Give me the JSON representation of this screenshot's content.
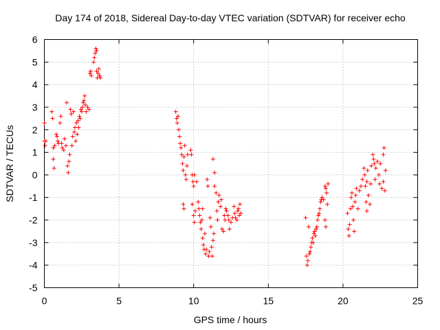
{
  "chart_data": {
    "type": "scatter",
    "title": "Day 174 of 2018, Sidereal Day-to-day VTEC variation (SDTVAR) for receiver echo",
    "xlabel": "GPS time / hours",
    "ylabel": "SDTVAR / TECUs",
    "xlim": [
      0,
      25
    ],
    "ylim": [
      -5,
      6
    ],
    "xticks": [
      "0",
      "5",
      "10",
      "15",
      "20",
      "25"
    ],
    "yticks": [
      "-5",
      "-4",
      "-3",
      "-2",
      "-1",
      "0",
      "1",
      "2",
      "3",
      "4",
      "5",
      "6"
    ],
    "grid": true,
    "marker": "+",
    "color": "#ff0000",
    "series": [
      {
        "name": "SDTVAR",
        "points": [
          [
            0.0,
            2.3
          ],
          [
            0.0,
            1.5
          ],
          [
            0.05,
            1.3
          ],
          [
            0.1,
            1.5
          ],
          [
            0.5,
            2.8
          ],
          [
            0.55,
            2.5
          ],
          [
            0.6,
            1.2
          ],
          [
            0.6,
            0.7
          ],
          [
            0.65,
            0.3
          ],
          [
            0.7,
            1.3
          ],
          [
            0.8,
            1.8
          ],
          [
            0.85,
            1.7
          ],
          [
            0.9,
            1.5
          ],
          [
            0.95,
            1.4
          ],
          [
            1.05,
            2.3
          ],
          [
            1.1,
            2.6
          ],
          [
            1.15,
            1.4
          ],
          [
            1.2,
            1.2
          ],
          [
            1.3,
            1.1
          ],
          [
            1.35,
            1.6
          ],
          [
            1.45,
            1.3
          ],
          [
            1.5,
            3.2
          ],
          [
            1.55,
            0.4
          ],
          [
            1.6,
            0.1
          ],
          [
            1.65,
            0.6
          ],
          [
            1.7,
            0.9
          ],
          [
            1.75,
            2.9
          ],
          [
            1.8,
            2.7
          ],
          [
            1.85,
            1.3
          ],
          [
            1.9,
            1.7
          ],
          [
            1.95,
            2.8
          ],
          [
            2.0,
            1.9
          ],
          [
            2.05,
            2.1
          ],
          [
            2.1,
            1.5
          ],
          [
            2.15,
            2.3
          ],
          [
            2.2,
            1.8
          ],
          [
            2.25,
            2.4
          ],
          [
            2.3,
            2.1
          ],
          [
            2.35,
            2.6
          ],
          [
            2.4,
            2.5
          ],
          [
            2.45,
            2.9
          ],
          [
            2.5,
            2.8
          ],
          [
            2.55,
            3.0
          ],
          [
            2.6,
            3.2
          ],
          [
            2.65,
            3.3
          ],
          [
            2.7,
            3.5
          ],
          [
            2.75,
            3.1
          ],
          [
            2.8,
            2.8
          ],
          [
            2.9,
            3.0
          ],
          [
            3.0,
            2.9
          ],
          [
            3.05,
            4.5
          ],
          [
            3.1,
            4.6
          ],
          [
            3.15,
            4.4
          ],
          [
            3.3,
            5.0
          ],
          [
            3.35,
            5.2
          ],
          [
            3.4,
            5.4
          ],
          [
            3.45,
            5.6
          ],
          [
            3.5,
            5.5
          ],
          [
            3.5,
            4.6
          ],
          [
            3.55,
            4.3
          ],
          [
            3.6,
            4.5
          ],
          [
            3.65,
            4.7
          ],
          [
            3.7,
            4.4
          ],
          [
            3.75,
            4.3
          ],
          [
            8.8,
            2.8
          ],
          [
            8.85,
            2.5
          ],
          [
            8.9,
            2.3
          ],
          [
            8.95,
            2.6
          ],
          [
            9.0,
            2.0
          ],
          [
            9.05,
            1.7
          ],
          [
            9.1,
            1.4
          ],
          [
            9.15,
            1.2
          ],
          [
            9.2,
            0.9
          ],
          [
            9.25,
            0.5
          ],
          [
            9.3,
            0.2
          ],
          [
            9.35,
            0.8
          ],
          [
            9.4,
            1.3
          ],
          [
            9.45,
            0.0
          ],
          [
            9.5,
            -0.2
          ],
          [
            9.55,
            0.4
          ],
          [
            9.6,
            0.9
          ],
          [
            9.8,
            1.1
          ],
          [
            9.85,
            0.9
          ],
          [
            9.9,
            0.0
          ],
          [
            9.95,
            -0.3
          ],
          [
            10.0,
            -0.5
          ],
          [
            10.05,
            0.0
          ],
          [
            9.3,
            -1.3
          ],
          [
            9.35,
            -1.5
          ],
          [
            9.9,
            -1.3
          ],
          [
            10.0,
            -1.8
          ],
          [
            10.05,
            -2.1
          ],
          [
            10.1,
            -1.6
          ],
          [
            10.2,
            -0.3
          ],
          [
            10.3,
            -1.2
          ],
          [
            10.35,
            -1.5
          ],
          [
            10.4,
            -1.8
          ],
          [
            10.45,
            -2.1
          ],
          [
            10.5,
            -2.4
          ],
          [
            10.55,
            -2.0
          ],
          [
            10.6,
            -1.5
          ],
          [
            10.6,
            -2.8
          ],
          [
            10.65,
            -3.1
          ],
          [
            10.7,
            -3.3
          ],
          [
            10.75,
            -2.6
          ],
          [
            10.8,
            -3.5
          ],
          [
            10.85,
            -3.3
          ],
          [
            10.9,
            -0.2
          ],
          [
            10.95,
            -0.5
          ],
          [
            11.0,
            -3.6
          ],
          [
            11.05,
            -3.4
          ],
          [
            11.1,
            -1.9
          ],
          [
            11.15,
            -2.3
          ],
          [
            11.2,
            -3.2
          ],
          [
            11.25,
            -3.6
          ],
          [
            11.3,
            -2.9
          ],
          [
            11.35,
            -2.6
          ],
          [
            11.3,
            0.7
          ],
          [
            11.4,
            0.1
          ],
          [
            11.4,
            -0.5
          ],
          [
            11.5,
            -0.8
          ],
          [
            11.55,
            -1.6
          ],
          [
            11.6,
            -2.0
          ],
          [
            11.65,
            -1.2
          ],
          [
            11.7,
            -0.9
          ],
          [
            11.8,
            -1.4
          ],
          [
            11.85,
            -1.1
          ],
          [
            11.9,
            -2.4
          ],
          [
            12.0,
            -2.5
          ],
          [
            12.05,
            -1.8
          ],
          [
            12.1,
            -2.0
          ],
          [
            12.15,
            -1.5
          ],
          [
            12.2,
            -1.6
          ],
          [
            12.3,
            -1.8
          ],
          [
            12.35,
            -2.0
          ],
          [
            12.4,
            -2.4
          ],
          [
            12.5,
            -2.1
          ],
          [
            12.6,
            -1.9
          ],
          [
            12.7,
            -1.4
          ],
          [
            12.75,
            -1.7
          ],
          [
            12.8,
            -1.9
          ],
          [
            12.9,
            -2.0
          ],
          [
            12.95,
            -1.6
          ],
          [
            13.0,
            -1.5
          ],
          [
            13.05,
            -1.8
          ],
          [
            13.1,
            -1.3
          ],
          [
            13.15,
            -1.7
          ],
          [
            17.5,
            -1.9
          ],
          [
            17.55,
            -3.6
          ],
          [
            17.6,
            -4.0
          ],
          [
            17.65,
            -3.8
          ],
          [
            17.7,
            -2.3
          ],
          [
            17.75,
            -3.5
          ],
          [
            17.8,
            -3.4
          ],
          [
            17.85,
            -3.2
          ],
          [
            17.9,
            -3.0
          ],
          [
            17.95,
            -2.8
          ],
          [
            18.0,
            -3.0
          ],
          [
            18.05,
            -2.6
          ],
          [
            18.1,
            -2.5
          ],
          [
            18.15,
            -2.7
          ],
          [
            18.2,
            -2.4
          ],
          [
            18.25,
            -2.3
          ],
          [
            18.3,
            -2.0
          ],
          [
            18.35,
            -1.8
          ],
          [
            18.4,
            -1.7
          ],
          [
            18.45,
            -1.5
          ],
          [
            18.5,
            -1.2
          ],
          [
            18.55,
            -1.1
          ],
          [
            18.6,
            -1.0
          ],
          [
            18.7,
            -1.1
          ],
          [
            18.8,
            -0.5
          ],
          [
            18.85,
            -0.6
          ],
          [
            18.9,
            -0.8
          ],
          [
            18.95,
            -1.3
          ],
          [
            19.0,
            -0.4
          ],
          [
            18.8,
            -2.0
          ],
          [
            18.85,
            -2.3
          ],
          [
            20.3,
            -1.7
          ],
          [
            20.35,
            -2.4
          ],
          [
            20.4,
            -2.7
          ],
          [
            20.45,
            -2.2
          ],
          [
            20.5,
            -1.5
          ],
          [
            20.55,
            -1.0
          ],
          [
            20.6,
            -0.8
          ],
          [
            20.65,
            -1.4
          ],
          [
            20.7,
            -2.0
          ],
          [
            20.75,
            -2.5
          ],
          [
            20.8,
            -1.2
          ],
          [
            20.85,
            -0.9
          ],
          [
            20.9,
            -0.6
          ],
          [
            21.0,
            -1.5
          ],
          [
            21.1,
            -0.7
          ],
          [
            21.2,
            -0.5
          ],
          [
            21.3,
            -0.2
          ],
          [
            21.4,
            0.3
          ],
          [
            21.45,
            0.0
          ],
          [
            21.5,
            -0.5
          ],
          [
            21.6,
            -0.3
          ],
          [
            21.65,
            0.2
          ],
          [
            21.7,
            -0.9
          ],
          [
            21.8,
            -1.3
          ],
          [
            21.85,
            -0.4
          ],
          [
            21.9,
            0.4
          ],
          [
            22.0,
            0.9
          ],
          [
            22.05,
            0.7
          ],
          [
            22.1,
            0.5
          ],
          [
            22.15,
            -0.2
          ],
          [
            22.2,
            0.3
          ],
          [
            22.3,
            0.6
          ],
          [
            22.4,
            0.0
          ],
          [
            22.45,
            -0.4
          ],
          [
            22.5,
            0.5
          ],
          [
            22.6,
            -0.6
          ],
          [
            22.7,
            0.9
          ],
          [
            22.75,
            1.2
          ],
          [
            22.8,
            -0.7
          ],
          [
            22.85,
            0.2
          ],
          [
            21.6,
            -1.6
          ],
          [
            21.55,
            -1.2
          ],
          [
            22.7,
            -0.3
          ]
        ]
      }
    ]
  }
}
